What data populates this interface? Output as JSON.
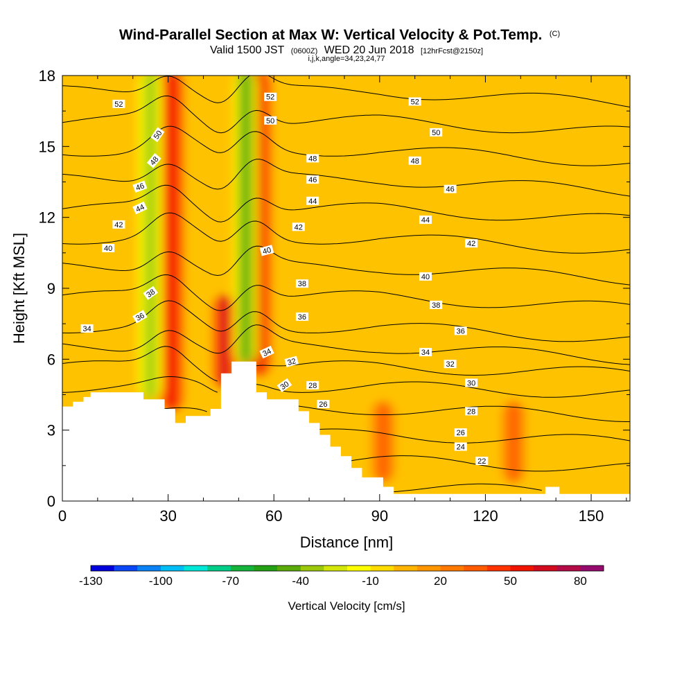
{
  "chart_data": {
    "type": "heatmap",
    "title": "Wind-Parallel Section at Max W: Vertical Velocity & Pot.Temp.",
    "title_mark": "(C)",
    "subtitle_parts": [
      "Valid 1500 JST",
      "(0600Z)",
      "WED 20 Jun 2018",
      "[12hrFcst@2150z]"
    ],
    "subtitle2": "i,j,k,angle=34,23,24,77",
    "xlabel": "Distance [nm]",
    "ylabel": "Height [Kft MSL]",
    "xlim": [
      0,
      161
    ],
    "ylim": [
      0,
      18
    ],
    "x_ticks": [
      0,
      30,
      60,
      90,
      120,
      150
    ],
    "y_ticks": [
      0,
      3,
      6,
      9,
      12,
      15,
      18
    ],
    "colorbar": {
      "label": "Vertical Velocity [cm/s]",
      "min": -130,
      "max": 90,
      "step": 10,
      "tick_values": [
        -130,
        -100,
        -70,
        -40,
        -10,
        20,
        50,
        80
      ],
      "colors": [
        "#0000dc",
        "#0a46f5",
        "#0a82f5",
        "#00bef5",
        "#00e6d7",
        "#00cd87",
        "#14b43c",
        "#23a014",
        "#5aaa0a",
        "#9bc80a",
        "#d2e60a",
        "#ffff00",
        "#ffdc00",
        "#ffb400",
        "#ff9600",
        "#ff7800",
        "#ff5a00",
        "#ff3200",
        "#f01400",
        "#d20a1e",
        "#b40a46",
        "#960a6e"
      ]
    },
    "vertical_velocity_features": [
      {
        "kind": "updraft",
        "x": 31,
        "y_bottom": 4,
        "y_top": 18,
        "peak": 55
      },
      {
        "kind": "updraft",
        "x": 46,
        "y_bottom": 5,
        "y_top": 8.5,
        "peak": 60
      },
      {
        "kind": "updraft",
        "x": 56,
        "y_bottom": 5.5,
        "y_top": 18,
        "peak": 50
      },
      {
        "kind": "downdraft",
        "x": 25,
        "y_bottom": 4.5,
        "y_top": 18,
        "peak": -35
      },
      {
        "kind": "downdraft",
        "x": 52,
        "y_bottom": 6,
        "y_top": 18,
        "peak": -45
      },
      {
        "kind": "updraft",
        "x": 91,
        "y_bottom": 1,
        "y_top": 4,
        "peak": 30
      },
      {
        "kind": "updraft",
        "x": 128,
        "y_bottom": 1,
        "y_top": 4,
        "peak": 35
      }
    ],
    "terrain": [
      [
        0,
        4
      ],
      [
        3,
        4
      ],
      [
        3,
        4.2
      ],
      [
        6,
        4.2
      ],
      [
        6,
        4.4
      ],
      [
        8,
        4.4
      ],
      [
        8,
        4.6
      ],
      [
        23,
        4.6
      ],
      [
        23,
        4.3
      ],
      [
        29,
        4.3
      ],
      [
        29,
        3.9
      ],
      [
        32,
        3.9
      ],
      [
        32,
        3.3
      ],
      [
        35,
        3.3
      ],
      [
        35,
        3.6
      ],
      [
        42,
        3.6
      ],
      [
        42,
        3.9
      ],
      [
        45,
        3.9
      ],
      [
        45,
        5.4
      ],
      [
        48,
        5.4
      ],
      [
        48,
        5.9
      ],
      [
        55,
        5.9
      ],
      [
        55,
        4.6
      ],
      [
        58,
        4.6
      ],
      [
        58,
        4.3
      ],
      [
        67,
        4.3
      ],
      [
        67,
        3.8
      ],
      [
        70,
        3.8
      ],
      [
        70,
        3.3
      ],
      [
        73,
        3.3
      ],
      [
        73,
        2.8
      ],
      [
        76,
        2.8
      ],
      [
        76,
        2.3
      ],
      [
        79,
        2.3
      ],
      [
        79,
        1.9
      ],
      [
        82,
        1.9
      ],
      [
        82,
        1.4
      ],
      [
        85,
        1.4
      ],
      [
        85,
        1
      ],
      [
        91,
        1
      ],
      [
        91,
        0.6
      ],
      [
        94,
        0.6
      ],
      [
        94,
        0.3
      ],
      [
        137,
        0.3
      ],
      [
        137,
        0.6
      ],
      [
        141,
        0.6
      ],
      [
        141,
        0.3
      ],
      [
        161,
        0.3
      ]
    ],
    "theta_levels": [
      22,
      24,
      26,
      28,
      30,
      32,
      34,
      36,
      38,
      40,
      42,
      44,
      46,
      48,
      50,
      52
    ],
    "theta_labels": [
      {
        "value": "52",
        "x": 16,
        "y": 16.8,
        "angle": 0
      },
      {
        "value": "52",
        "x": 59,
        "y": 17.1,
        "angle": 0
      },
      {
        "value": "52",
        "x": 100,
        "y": 16.9,
        "angle": 0
      },
      {
        "value": "50",
        "x": 27,
        "y": 15.5,
        "angle": -55
      },
      {
        "value": "50",
        "x": 59,
        "y": 16.1,
        "angle": 0
      },
      {
        "value": "50",
        "x": 106,
        "y": 15.6,
        "angle": 0
      },
      {
        "value": "48",
        "x": 26,
        "y": 14.4,
        "angle": -50
      },
      {
        "value": "48",
        "x": 71,
        "y": 14.5,
        "angle": 0
      },
      {
        "value": "48",
        "x": 100,
        "y": 14.4,
        "angle": 0
      },
      {
        "value": "46",
        "x": 22,
        "y": 13.3,
        "angle": -20
      },
      {
        "value": "46",
        "x": 71,
        "y": 13.6,
        "angle": 0
      },
      {
        "value": "46",
        "x": 110,
        "y": 13.2,
        "angle": 0
      },
      {
        "value": "44",
        "x": 22,
        "y": 12.4,
        "angle": -25
      },
      {
        "value": "44",
        "x": 71,
        "y": 12.7,
        "angle": 0
      },
      {
        "value": "44",
        "x": 103,
        "y": 11.9,
        "angle": 0
      },
      {
        "value": "42",
        "x": 16,
        "y": 11.7,
        "angle": 0
      },
      {
        "value": "42",
        "x": 67,
        "y": 11.6,
        "angle": 0
      },
      {
        "value": "42",
        "x": 116,
        "y": 10.9,
        "angle": 0
      },
      {
        "value": "40",
        "x": 13,
        "y": 10.7,
        "angle": 0
      },
      {
        "value": "40",
        "x": 58,
        "y": 10.6,
        "angle": -15
      },
      {
        "value": "40",
        "x": 103,
        "y": 9.5,
        "angle": 0
      },
      {
        "value": "38",
        "x": 25,
        "y": 8.8,
        "angle": -35
      },
      {
        "value": "38",
        "x": 68,
        "y": 9.2,
        "angle": 0
      },
      {
        "value": "38",
        "x": 106,
        "y": 8.3,
        "angle": 0
      },
      {
        "value": "36",
        "x": 22,
        "y": 7.8,
        "angle": -30
      },
      {
        "value": "36",
        "x": 68,
        "y": 7.8,
        "angle": 0
      },
      {
        "value": "36",
        "x": 113,
        "y": 7.2,
        "angle": 0
      },
      {
        "value": "34",
        "x": 7,
        "y": 7.3,
        "angle": 0
      },
      {
        "value": "34",
        "x": 58,
        "y": 6.3,
        "angle": -25
      },
      {
        "value": "34",
        "x": 103,
        "y": 6.3,
        "angle": 0
      },
      {
        "value": "32",
        "x": 65,
        "y": 5.9,
        "angle": -15
      },
      {
        "value": "32",
        "x": 110,
        "y": 5.8,
        "angle": 0
      },
      {
        "value": "30",
        "x": 63,
        "y": 4.9,
        "angle": -35
      },
      {
        "value": "30",
        "x": 116,
        "y": 5.0,
        "angle": 0
      },
      {
        "value": "28",
        "x": 71,
        "y": 4.9,
        "angle": 0
      },
      {
        "value": "28",
        "x": 116,
        "y": 3.8,
        "angle": 0
      },
      {
        "value": "26",
        "x": 74,
        "y": 4.1,
        "angle": 0
      },
      {
        "value": "26",
        "x": 113,
        "y": 2.9,
        "angle": 0
      },
      {
        "value": "24",
        "x": 113,
        "y": 2.3,
        "angle": 0
      },
      {
        "value": "22",
        "x": 119,
        "y": 1.7,
        "angle": 0
      }
    ]
  }
}
